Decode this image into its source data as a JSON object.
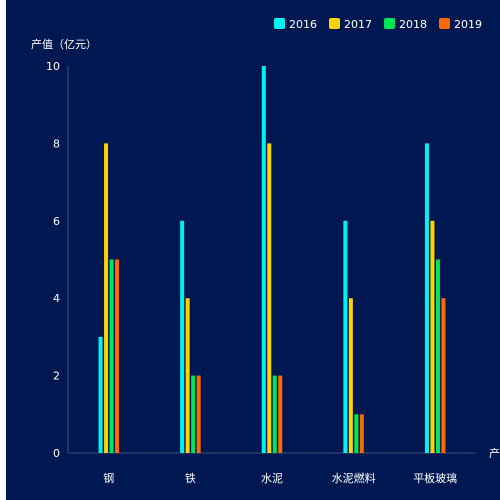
{
  "chart_data": {
    "type": "bar",
    "ylabel": "产值（亿元）",
    "xlabel": "产业",
    "categories": [
      "钢",
      "铁",
      "水泥",
      "水泥燃料",
      "平板玻璃"
    ],
    "series": [
      {
        "name": "2016",
        "color": "#00f2f1",
        "values": [
          3,
          6,
          10,
          6,
          8
        ]
      },
      {
        "name": "2017",
        "color": "#ffd200",
        "values": [
          8,
          4,
          8,
          4,
          6
        ]
      },
      {
        "name": "2018",
        "color": "#00e658",
        "values": [
          5,
          2,
          2,
          1,
          5
        ]
      },
      {
        "name": "2019",
        "color": "#ff6a00",
        "values": [
          5,
          2,
          2,
          1,
          4
        ]
      }
    ],
    "ylim": [
      0,
      10
    ],
    "yticks": [
      0,
      2,
      4,
      6,
      8,
      10
    ],
    "legend_position": "top-right",
    "grid": false
  }
}
